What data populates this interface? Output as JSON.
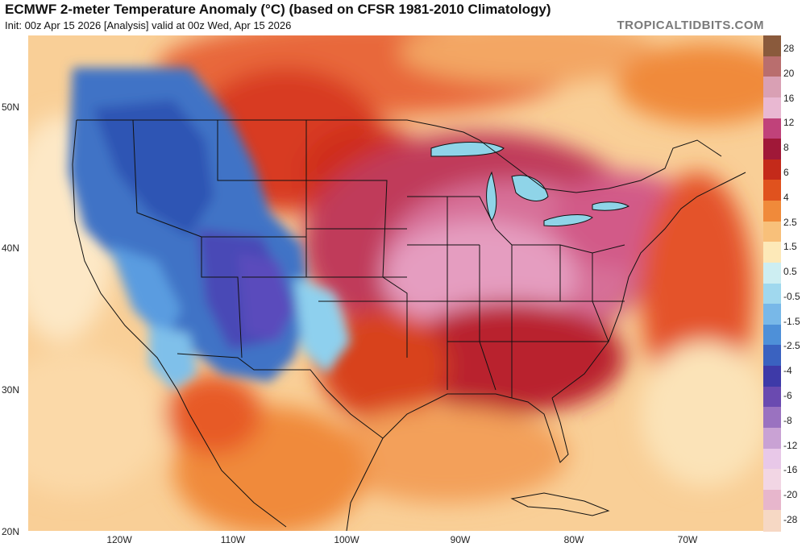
{
  "header": {
    "title": "ECMWF 2-meter Temperature Anomaly (°C) (based on CFSR 1981-2010 Climatology)",
    "subtitle": "Init: 00z Apr 15 2026   [Analysis]   valid at 00z Wed, Apr 15 2026",
    "brand": "TROPICALTIDBITS.COM"
  },
  "axes": {
    "lat_labels": [
      "50N",
      "40N",
      "30N",
      "20N"
    ],
    "lon_labels": [
      "120W",
      "110W",
      "100W",
      "90W",
      "80W",
      "70W"
    ]
  },
  "colorbar": {
    "labels": [
      "28",
      "20",
      "16",
      "12",
      "8",
      "6",
      "4",
      "2.5",
      "1.5",
      "0.5",
      "-0.5",
      "-1.5",
      "-2.5",
      "-4",
      "-6",
      "-8",
      "-12",
      "-16",
      "-20",
      "-28"
    ],
    "colors": [
      "#8a5a3c",
      "#b96e6e",
      "#d9a0b4",
      "#e9b8d2",
      "#c0427a",
      "#a01838",
      "#c42a1a",
      "#e0521e",
      "#f08a3a",
      "#f8c07a",
      "#fde9b8",
      "#cdeef2",
      "#a0d8ee",
      "#78b8e8",
      "#4e90d8",
      "#3a62c0",
      "#3e3aa8",
      "#6a4ab0",
      "#9a72c0",
      "#c9a2d4",
      "#e8c8e8",
      "#f2d6e4",
      "#e7b6cc",
      "#f6d8c4"
    ]
  },
  "colors": {
    "land_boundary": "#111111",
    "ocean_base": "#f7c68a"
  }
}
